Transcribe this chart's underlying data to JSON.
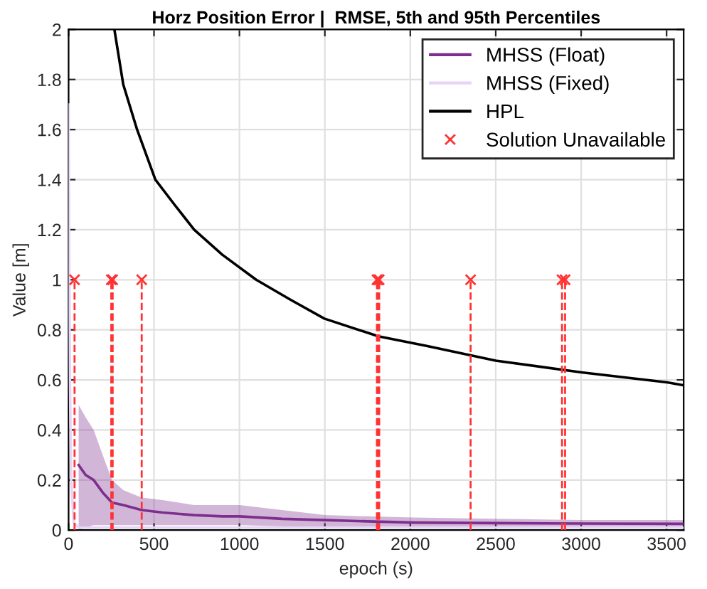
{
  "chart_data": {
    "type": "line",
    "title": "Horz Position Error |  RMSE, 5th and 95th Percentiles",
    "xlabel": "epoch (s)",
    "ylabel": "Value [m]",
    "xlim": [
      0,
      3600
    ],
    "ylim": [
      0,
      2
    ],
    "xticks": [
      0,
      500,
      1000,
      1500,
      2000,
      2500,
      3000,
      3500
    ],
    "yticks": [
      0,
      {
        "value": 0.2,
        "label": "0.2"
      },
      {
        "value": 0.4,
        "label": "0.4"
      },
      {
        "value": 0.6,
        "label": "0.6"
      },
      {
        "value": 0.8,
        "label": "0.8"
      },
      1,
      {
        "value": 1.2,
        "label": "1.2"
      },
      {
        "value": 1.4,
        "label": "1.4"
      },
      {
        "value": 1.6,
        "label": "1.6"
      },
      {
        "value": 1.8,
        "label": "1.8"
      },
      2
    ],
    "grid": true,
    "legend": "top right",
    "series": [
      {
        "name": "MHSS (Float)",
        "color": "#7e2f8e",
        "marker": "none",
        "line_style": "solid",
        "x": [
          59,
          100,
          147,
          200,
          254,
          320,
          428,
          550,
          735,
          900,
          1000,
          1250,
          1500,
          1750,
          2019,
          2500,
          3000,
          3600
        ],
        "values": [
          0.26,
          0.22,
          0.2,
          0.15,
          0.11,
          0.1,
          0.08,
          0.07,
          0.06,
          0.055,
          0.055,
          0.045,
          0.04,
          0.035,
          0.03,
          0.028,
          0.026,
          0.025
        ],
        "lower": [
          0.0,
          0.01,
          0.02,
          0.02,
          0.02,
          0.02,
          0.02,
          0.02,
          0.02,
          0.02,
          0.02,
          0.015,
          0.015,
          0.015,
          0.01,
          0.01,
          0.01,
          0.01
        ],
        "upper": [
          0.5,
          0.45,
          0.4,
          0.3,
          0.2,
          0.16,
          0.13,
          0.12,
          0.1,
          0.1,
          0.1,
          0.08,
          0.06,
          0.055,
          0.05,
          0.045,
          0.04,
          0.04
        ]
      },
      {
        "name": "MHSS (Fixed)",
        "color": "#e6d5f7",
        "marker": "none",
        "line_style": "solid",
        "x": [
          0,
          3,
          8,
          15,
          30,
          60,
          500,
          1000,
          2000,
          3600
        ],
        "values": [
          1.7,
          1.2,
          0.6,
          0.2,
          0.03,
          0.01,
          0.01,
          0.01,
          0.01,
          0.01
        ]
      },
      {
        "name": "HPL",
        "color": "#000000",
        "marker": "none",
        "line_style": "solid",
        "x": [
          268,
          320,
          401,
          508,
          620,
          735,
          900,
          1098,
          1300,
          1497,
          1813,
          2100,
          2500,
          3003,
          3503,
          3596
        ],
        "values": [
          2,
          1.78,
          1.6,
          1.4,
          1.3,
          1.2,
          1.1,
          1.0,
          0.92,
          0.845,
          0.774,
          0.735,
          0.677,
          0.63,
          0.59,
          0.579
        ]
      },
      {
        "name": "Solution Unavailable",
        "type": "lollipop",
        "color": "#ff3333",
        "marker": "cross",
        "line_style": "dashed",
        "x": [
          35,
          250,
          258,
          428,
          1805,
          1813,
          1818,
          2353,
          2888,
          2906
        ],
        "values": [
          1,
          1,
          1,
          1,
          1,
          1,
          1,
          1,
          1,
          1
        ]
      }
    ]
  }
}
